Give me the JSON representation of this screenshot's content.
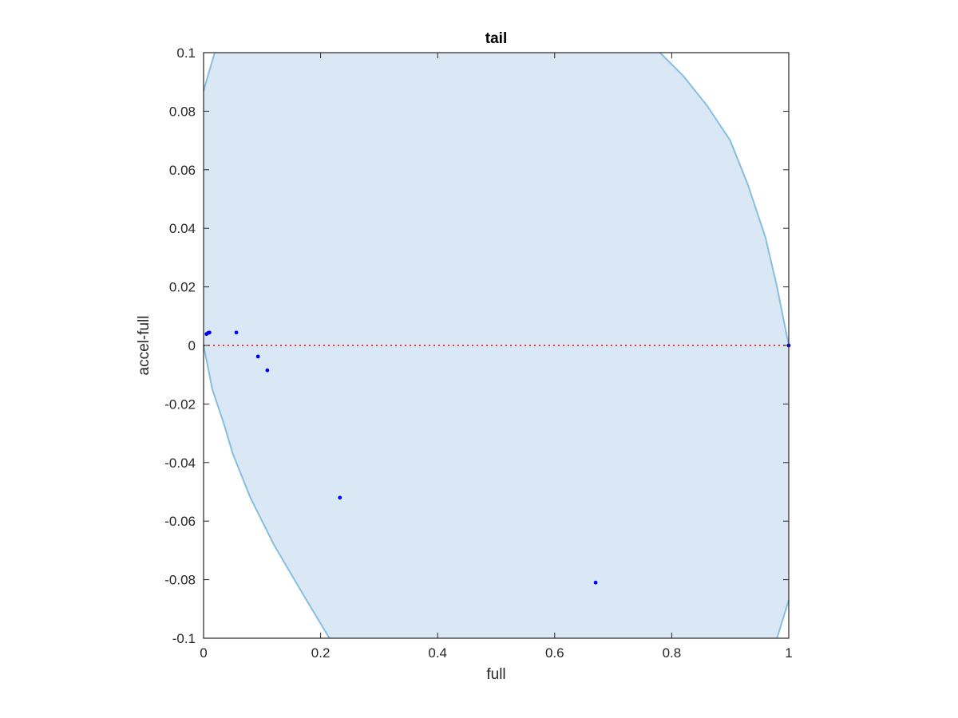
{
  "chart_data": {
    "type": "scatter",
    "title": "tail",
    "xlabel": "full",
    "ylabel": "accel-full",
    "xlim": [
      0,
      1
    ],
    "ylim": [
      -0.1,
      0.1
    ],
    "x_ticks": [
      "0",
      "0.2",
      "0.4",
      "0.6",
      "0.8",
      "1"
    ],
    "x_tick_values": [
      0,
      0.2,
      0.4,
      0.6,
      0.8,
      1
    ],
    "y_ticks": [
      "-0.1",
      "-0.08",
      "-0.06",
      "-0.04",
      "-0.02",
      "0",
      "0.02",
      "0.04",
      "0.06",
      "0.08",
      "0.1"
    ],
    "y_tick_values": [
      -0.1,
      -0.08,
      -0.06,
      -0.04,
      -0.02,
      0,
      0.02,
      0.04,
      0.06,
      0.08,
      0.1
    ],
    "grid": false,
    "reference_line": {
      "y": 0,
      "style": "dotted",
      "color": "#ff0000"
    },
    "region": {
      "fill": "#d9e8f4",
      "stroke": "#86bfe0",
      "left_upper_boundary": [
        [
          0,
          0.087
        ],
        [
          0.019,
          0.1
        ]
      ],
      "right_upper_boundary": [
        [
          0.78,
          0.1
        ],
        [
          0.82,
          0.092
        ],
        [
          0.86,
          0.082
        ],
        [
          0.9,
          0.07
        ],
        [
          0.93,
          0.055
        ],
        [
          0.96,
          0.037
        ],
        [
          0.98,
          0.02
        ],
        [
          1.0,
          0.0
        ]
      ],
      "left_lower_boundary": [
        [
          0,
          0.0
        ],
        [
          0.015,
          -0.015
        ],
        [
          0.035,
          -0.027
        ],
        [
          0.05,
          -0.037
        ],
        [
          0.08,
          -0.052
        ],
        [
          0.12,
          -0.068
        ],
        [
          0.17,
          -0.085
        ],
        [
          0.215,
          -0.1
        ]
      ],
      "right_lower_boundary": [
        [
          0.98,
          -0.1
        ],
        [
          1.0,
          -0.087
        ]
      ]
    },
    "series": [
      {
        "color": "#0000ff",
        "points": [
          [
            0.005,
            0.0039
          ],
          [
            0.008,
            0.0043
          ],
          [
            0.01,
            0.0044
          ],
          [
            0.056,
            0.0044
          ],
          [
            0.093,
            -0.0038
          ],
          [
            0.109,
            -0.0085
          ],
          [
            0.233,
            -0.052
          ],
          [
            0.67,
            -0.081
          ],
          [
            1.0,
            0.0
          ]
        ]
      }
    ]
  }
}
